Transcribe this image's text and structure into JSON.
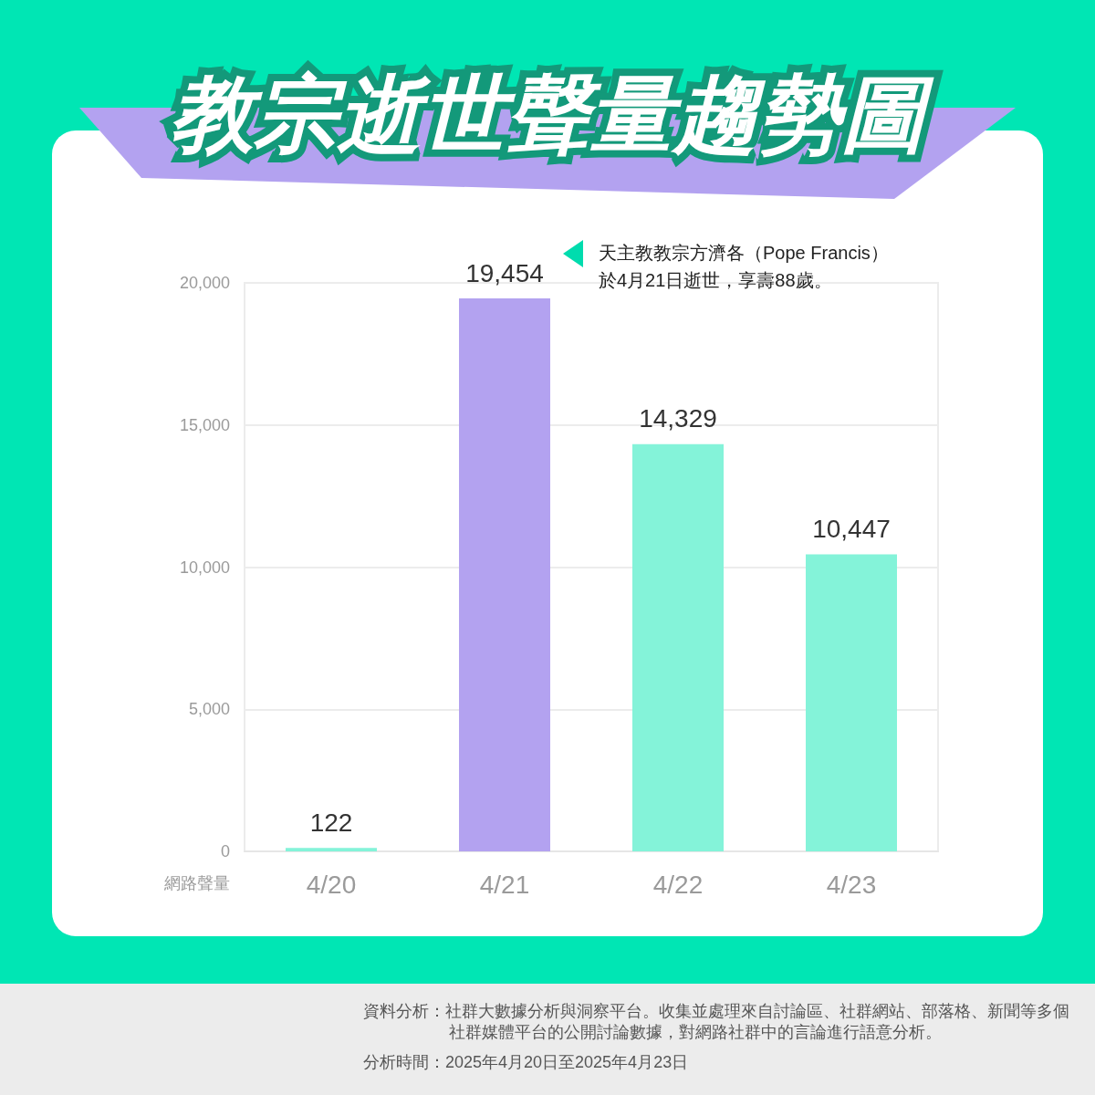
{
  "chart_data": {
    "type": "bar",
    "title": "教宗逝世聲量趨勢圖",
    "ylabel": "網路聲量",
    "categories": [
      "4/20",
      "4/21",
      "4/22",
      "4/23"
    ],
    "values": [
      122,
      19454,
      14329,
      10447
    ],
    "colors": [
      "#84f3d9",
      "#b3a2f0",
      "#84f3d9",
      "#84f3d9"
    ],
    "value_labels": [
      "122",
      "19,454",
      "14,329",
      "10,447"
    ],
    "ylim": [
      0,
      20000
    ],
    "yticks": [
      0,
      {
        "value": 5000,
        "label": "5,000"
      },
      {
        "value": 10000,
        "label": "10,000"
      },
      {
        "value": 15000,
        "label": "15,000"
      },
      {
        "value": 20000,
        "label": "20,000"
      }
    ],
    "grid": "y",
    "annotations": [
      "天主教教宗方濟各（Pope Francis）於4月21日逝世，享壽88歲。",
      "資料分析：社群大數據分析與洞察平台。收集並處理來自討論區、社群網站、部落格、新聞等多個社群媒體平台的公開討論數據，對網路社群中的言論進行語意分析。",
      "分析時間：2025年4月20日至2025年4月23日"
    ]
  }
}
